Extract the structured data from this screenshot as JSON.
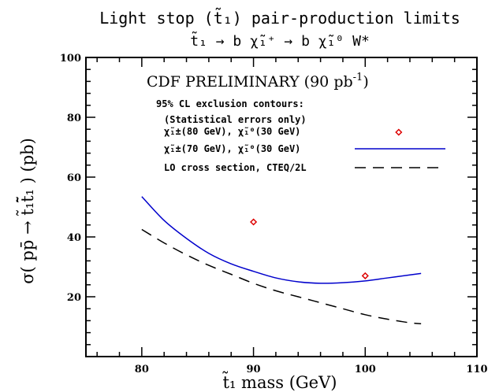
{
  "chart_data": {
    "type": "line",
    "title": "Light stop (t̃₁) pair-production limits",
    "subtitle": "t̃₁ → b χ̃₁⁺ → b χ̃₁⁰ W*",
    "xlabel": "t̃₁ mass  (GeV)",
    "ylabel": "σ( pp̄ → t̃₁t̃̄₁ )  (pb)",
    "xlim": [
      75,
      110
    ],
    "ylim": [
      0,
      100
    ],
    "x_ticks": [
      "80",
      "90",
      "100",
      "110"
    ],
    "y_ticks": [
      "20",
      "40",
      "60",
      "80",
      "100"
    ],
    "grid": false,
    "annotations": {
      "preliminary": "CDF PRELIMINARY (90 pb",
      "preliminary_sup": "-1",
      "preliminary_close": ")",
      "contours_title": "95% CL exclusion contours:",
      "contours_note": "(Statistical errors only)"
    },
    "legend_position": "top-right",
    "series": [
      {
        "name": "χ̃₁±(80 GeV), χ̃₁⁰(30 GeV)",
        "style": "markers",
        "color": "#dd0000",
        "x": [
          90,
          100,
          103
        ],
        "y": [
          45,
          27,
          75
        ]
      },
      {
        "name": "χ̃₁±(70 GeV), χ̃₁⁰(30 GeV)",
        "style": "solid",
        "color": "#0000cc",
        "x": [
          80,
          82,
          84,
          86,
          88,
          90,
          92,
          94,
          96,
          98,
          100,
          102,
          104,
          105
        ],
        "y": [
          53.5,
          45.5,
          39.5,
          34.5,
          31,
          28.5,
          26.3,
          25,
          24.5,
          24.7,
          25.3,
          26.3,
          27.3,
          27.8
        ]
      },
      {
        "name": "LO cross section, CTEQ/2L",
        "style": "dashed",
        "color": "#000000",
        "x": [
          80,
          82,
          84,
          86,
          88,
          90,
          92,
          94,
          96,
          98,
          100,
          102,
          104,
          105
        ],
        "y": [
          42.5,
          38,
          34,
          30.5,
          27.5,
          24.5,
          22,
          20,
          18,
          16,
          14,
          12.5,
          11.3,
          11
        ]
      }
    ]
  }
}
